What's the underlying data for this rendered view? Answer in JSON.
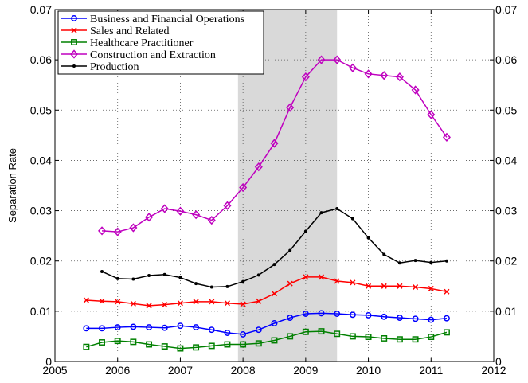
{
  "chart_data": {
    "type": "line",
    "ylabel": "Separation Rate",
    "xlim": [
      2005,
      2012
    ],
    "xticks": [
      2005,
      2006,
      2007,
      2008,
      2009,
      2010,
      2011,
      2012
    ],
    "ylim": [
      0,
      0.07
    ],
    "yticks": [
      0,
      0.01,
      0.02,
      0.03,
      0.04,
      0.05,
      0.06,
      0.07
    ],
    "grid": true,
    "legend": "upper-left",
    "shade": [
      2007.92,
      2009.5
    ],
    "shade_color": "#d9d9d9",
    "series": [
      {
        "name": "Business and Financial Operations",
        "color": "#0000ff",
        "marker": "circle",
        "x": [
          2005.5,
          2005.75,
          2006,
          2006.25,
          2006.5,
          2006.75,
          2007,
          2007.25,
          2007.5,
          2007.75,
          2008,
          2008.25,
          2008.5,
          2008.75,
          2009,
          2009.25,
          2009.5,
          2009.75,
          2010,
          2010.25,
          2010.5,
          2010.75,
          2011,
          2011.25
        ],
        "values": [
          0.0066,
          0.0066,
          0.0068,
          0.0069,
          0.0068,
          0.0067,
          0.0071,
          0.0068,
          0.0063,
          0.0057,
          0.0054,
          0.0063,
          0.0076,
          0.0087,
          0.0095,
          0.0096,
          0.0095,
          0.0093,
          0.0092,
          0.0089,
          0.0087,
          0.0085,
          0.0083,
          0.0086
        ]
      },
      {
        "name": "Sales and Related",
        "color": "#ff0000",
        "marker": "x",
        "x": [
          2005.5,
          2005.75,
          2006,
          2006.25,
          2006.5,
          2006.75,
          2007,
          2007.25,
          2007.5,
          2007.75,
          2008,
          2008.25,
          2008.5,
          2008.75,
          2009,
          2009.25,
          2009.5,
          2009.75,
          2010,
          2010.25,
          2010.5,
          2010.75,
          2011,
          2011.25
        ],
        "values": [
          0.0122,
          0.012,
          0.0119,
          0.0115,
          0.0111,
          0.0113,
          0.0116,
          0.0119,
          0.0119,
          0.0116,
          0.0114,
          0.012,
          0.0135,
          0.0155,
          0.0168,
          0.0168,
          0.016,
          0.0157,
          0.015,
          0.015,
          0.015,
          0.0148,
          0.0145,
          0.0139
        ]
      },
      {
        "name": "Healthcare Practitioner",
        "color": "#008000",
        "marker": "square",
        "x": [
          2005.5,
          2005.75,
          2006,
          2006.25,
          2006.5,
          2006.75,
          2007,
          2007.25,
          2007.5,
          2007.75,
          2008,
          2008.25,
          2008.5,
          2008.75,
          2009,
          2009.25,
          2009.5,
          2009.75,
          2010,
          2010.25,
          2010.5,
          2010.75,
          2011,
          2011.25
        ],
        "values": [
          0.0029,
          0.0038,
          0.0041,
          0.0039,
          0.0034,
          0.003,
          0.0026,
          0.0028,
          0.0031,
          0.0034,
          0.0034,
          0.0036,
          0.0042,
          0.005,
          0.0059,
          0.006,
          0.0055,
          0.005,
          0.0049,
          0.0046,
          0.0044,
          0.0044,
          0.0049,
          0.0058
        ]
      },
      {
        "name": "Construction and Extraction",
        "color": "#bf00bf",
        "marker": "diamond",
        "x": [
          2005.75,
          2006,
          2006.25,
          2006.5,
          2006.75,
          2007,
          2007.25,
          2007.5,
          2007.75,
          2008,
          2008.25,
          2008.5,
          2008.75,
          2009,
          2009.25,
          2009.5,
          2009.75,
          2010,
          2010.25,
          2010.5,
          2010.75,
          2011,
          2011.25
        ],
        "values": [
          0.026,
          0.0258,
          0.0266,
          0.0287,
          0.0304,
          0.0299,
          0.0292,
          0.0281,
          0.031,
          0.0346,
          0.0387,
          0.0434,
          0.0505,
          0.0566,
          0.06,
          0.06,
          0.0584,
          0.0572,
          0.0569,
          0.0566,
          0.054,
          0.0491,
          0.0446
        ]
      },
      {
        "name": "Production",
        "color": "#000000",
        "marker": "dot",
        "x": [
          2005.75,
          2006,
          2006.25,
          2006.5,
          2006.75,
          2007,
          2007.25,
          2007.5,
          2007.75,
          2008,
          2008.25,
          2008.5,
          2008.75,
          2009,
          2009.25,
          2009.5,
          2009.75,
          2010,
          2010.25,
          2010.5,
          2010.75,
          2011,
          2011.25
        ],
        "values": [
          0.0179,
          0.0165,
          0.0164,
          0.0171,
          0.0173,
          0.0167,
          0.0155,
          0.0148,
          0.0149,
          0.0159,
          0.0172,
          0.0193,
          0.0221,
          0.0259,
          0.0296,
          0.0304,
          0.0284,
          0.0246,
          0.0213,
          0.0196,
          0.0201,
          0.0197,
          0.02
        ]
      }
    ]
  }
}
